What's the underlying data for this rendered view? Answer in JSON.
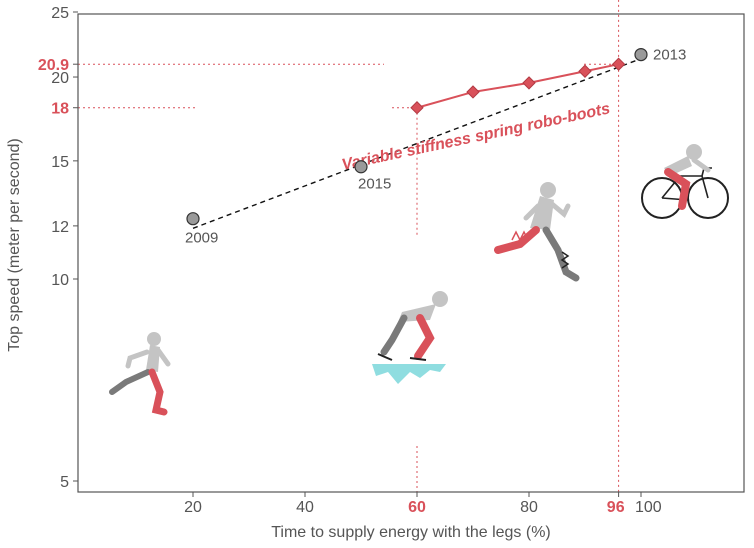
{
  "chart_data": {
    "type": "scatter",
    "title": "",
    "xlabel": "Time to supply energy with the legs (%)",
    "ylabel": "Top speed (meter per second)",
    "xlim": [
      0,
      120
    ],
    "ylim": [
      5,
      25
    ],
    "yscale": "log",
    "grid": false,
    "x_ticks": [
      20,
      40,
      60,
      80,
      96,
      100
    ],
    "x_ticks_highlighted": [
      60,
      96
    ],
    "y_ticks": [
      5,
      10,
      12,
      15,
      18,
      20,
      20.9,
      25
    ],
    "y_ticks_highlighted": [
      18,
      20.9
    ],
    "points": [
      {
        "label": "2009",
        "x": 20,
        "y": 12.3
      },
      {
        "label": "2015",
        "x": 50,
        "y": 14.7
      },
      {
        "label": "2013",
        "x": 100,
        "y": 21.6
      }
    ],
    "trend_line": {
      "x": [
        20,
        100
      ],
      "y": [
        11.9,
        21.3
      ],
      "style": "dashed"
    },
    "series": [
      {
        "name": "Variable stiffness spring robo-boots",
        "x": [
          60,
          70,
          80,
          90,
          96
        ],
        "y": [
          18.0,
          19.0,
          19.6,
          20.4,
          20.9
        ]
      }
    ],
    "reference_lines": [
      {
        "axis": "y",
        "value": 20.9
      },
      {
        "axis": "y",
        "value": 18
      },
      {
        "axis": "x",
        "value": 60
      },
      {
        "axis": "x",
        "value": 96
      }
    ],
    "illustrations": [
      "sprinter-figure",
      "speed-skater-figure",
      "runner-with-spring-boots-figure",
      "cyclist-figure"
    ],
    "colors": {
      "accent": "#d9515a",
      "marker": "#9a9a9a",
      "axis": "#555555",
      "figure_gray": "#c4c4c4",
      "figure_dark": "#7a7a7a",
      "ice": "#8fdde0"
    }
  }
}
